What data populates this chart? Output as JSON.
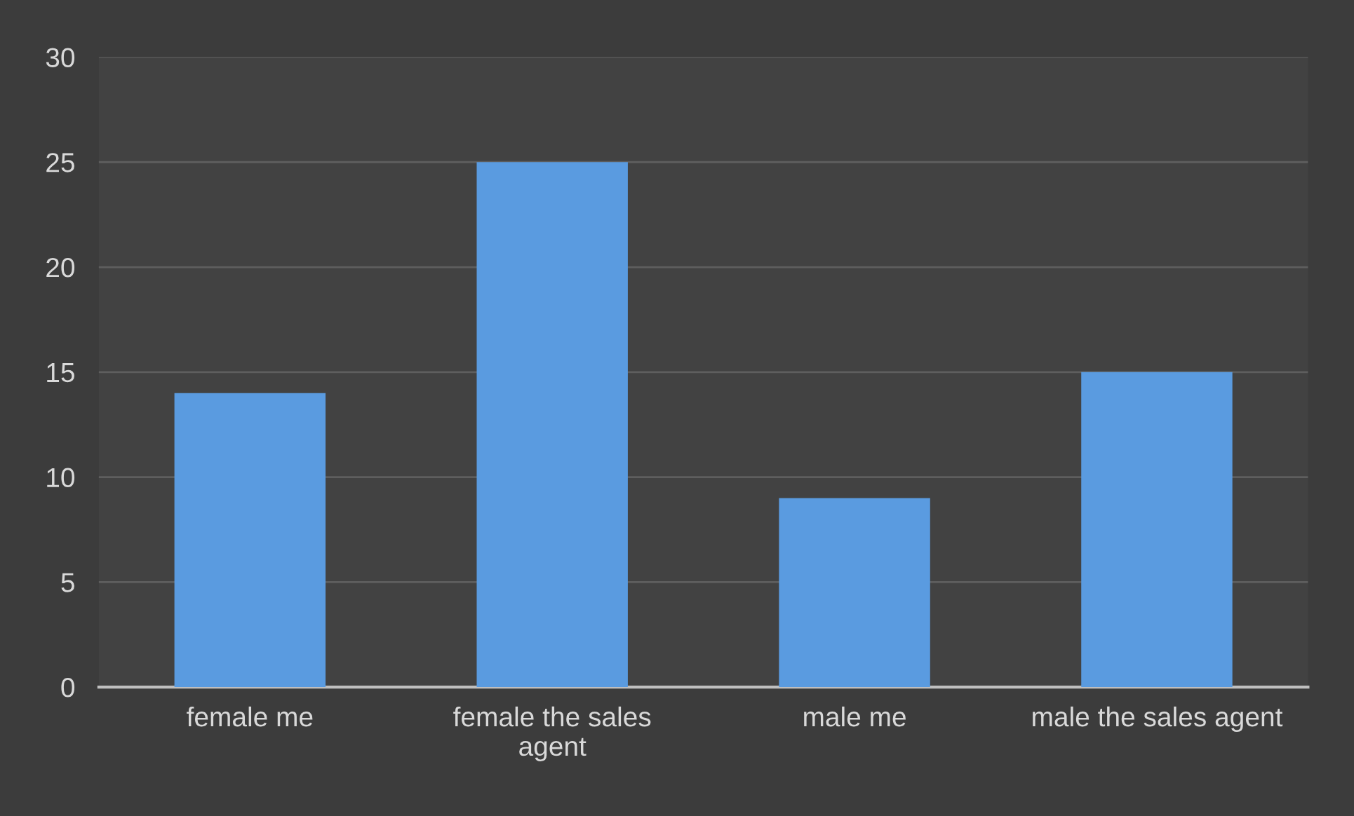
{
  "chart_data": {
    "type": "bar",
    "categories": [
      "female me",
      "female the sales agent",
      "male me",
      "male the sales agent"
    ],
    "values": [
      14,
      25,
      9,
      15
    ],
    "color": "#5a9be0",
    "ylim": [
      0,
      30
    ],
    "yticks": [
      0,
      5,
      10,
      15,
      20,
      25,
      30
    ],
    "grid": "y"
  }
}
